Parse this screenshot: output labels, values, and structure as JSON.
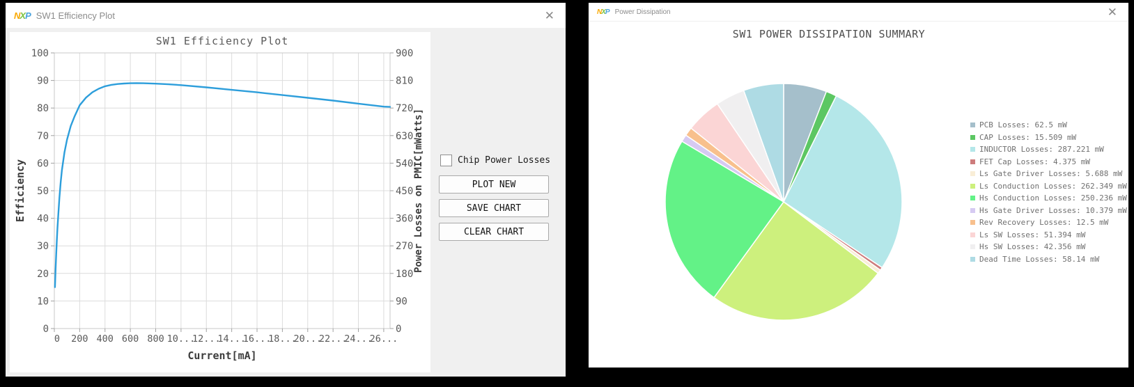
{
  "left_window": {
    "title": "SW1 Efficiency Plot",
    "logo_text": "NXP",
    "close_glyph": "✕",
    "controls": {
      "checkbox_label": "Chip Power Losses",
      "checkbox_checked": false,
      "buttons": [
        "PLOT NEW",
        "SAVE CHART",
        "CLEAR CHART"
      ]
    }
  },
  "right_window": {
    "title": "Power Dissipation",
    "logo_text": "NXP",
    "close_glyph": "✕"
  },
  "colors": {
    "nxp_orange": "#f9a800",
    "nxp_green": "#7cc242",
    "nxp_blue": "#4ba3dd",
    "efficiency_line": "#2d9edb",
    "grid": "#dcdcdc",
    "chart_text": "#595959"
  },
  "chart_data": [
    {
      "type": "line",
      "title": "SW1 Efficiency Plot",
      "xlabel": "Current[mA]",
      "ylabel_left": "Efficiency",
      "ylabel_right": "Power Losses on PMIC[mWatts]",
      "xlim": [
        0,
        2650
      ],
      "ylim_left": [
        0,
        100
      ],
      "ylim_right": [
        0,
        900
      ],
      "x_ticks": [
        0,
        200,
        400,
        600,
        800,
        1000,
        1200,
        1400,
        1600,
        1800,
        2000,
        2200,
        2400,
        2600
      ],
      "x_tick_labels": [
        "0",
        "200",
        "400",
        "600",
        "800",
        "10...",
        "12...",
        "14...",
        "16...",
        "18...",
        "20...",
        "22...",
        "24...",
        "26..."
      ],
      "y_ticks_left": [
        0,
        10,
        20,
        30,
        40,
        50,
        60,
        70,
        80,
        90,
        100
      ],
      "y_ticks_right": [
        0,
        90,
        180,
        270,
        360,
        450,
        540,
        630,
        720,
        810,
        900
      ],
      "grid": true,
      "line_color": "#2d9edb",
      "series": [
        {
          "name": "Efficiency",
          "x": [
            5,
            10,
            15,
            20,
            25,
            30,
            40,
            50,
            60,
            80,
            100,
            130,
            160,
            200,
            250,
            300,
            350,
            400,
            450,
            500,
            550,
            600,
            650,
            700,
            800,
            900,
            1000,
            1200,
            1400,
            1600,
            1800,
            2000,
            2200,
            2400,
            2600,
            2650
          ],
          "y": [
            15,
            21.5,
            27,
            32,
            36.5,
            40.5,
            47.5,
            53,
            57.5,
            64,
            68.5,
            73.5,
            77,
            81,
            83.8,
            85.7,
            87,
            87.9,
            88.4,
            88.7,
            88.9,
            89,
            89.05,
            89,
            88.85,
            88.6,
            88.3,
            87.5,
            86.6,
            85.7,
            84.7,
            83.7,
            82.7,
            81.6,
            80.5,
            80.4
          ]
        }
      ]
    },
    {
      "type": "pie",
      "title": "SW1 POWER DISSIPATION SUMMARY",
      "legend_position": "right",
      "start_angle_deg": 0,
      "direction": "clockwise",
      "slices": [
        {
          "label": "PCB Losses",
          "value_mw": 62.5,
          "legend_text": "PCB Losses: 62.5 mW",
          "color": "#a5bfcb"
        },
        {
          "label": "CAP Losses",
          "value_mw": 15.509,
          "legend_text": "CAP Losses: 15.509 mW",
          "color": "#5cc763"
        },
        {
          "label": "INDUCTOR Losses",
          "value_mw": 287.221,
          "legend_text": "INDUCTOR Losses: 287.221 mW",
          "color": "#b4e7e9"
        },
        {
          "label": "FET Cap Losses",
          "value_mw": 4.375,
          "legend_text": "FET Cap Losses: 4.375 mW",
          "color": "#cd7c7c"
        },
        {
          "label": "Ls Gate Driver Losses",
          "value_mw": 5.688,
          "legend_text": "Ls Gate Driver Losses: 5.688 mW",
          "color": "#f9eed7"
        },
        {
          "label": "Ls Conduction Losses",
          "value_mw": 262.349,
          "legend_text": "Ls Conduction Losses: 262.349 mW",
          "color": "#cdf07d"
        },
        {
          "label": "Hs Conduction Losses",
          "value_mw": 250.236,
          "legend_text": "Hs Conduction Losses: 250.236 mW",
          "color": "#63f287"
        },
        {
          "label": "Hs Gate Driver Losses",
          "value_mw": 10.379,
          "legend_text": "Hs Gate Driver Losses: 10.379 mW",
          "color": "#d6caf2"
        },
        {
          "label": "Rev Recovery Losses",
          "value_mw": 12.5,
          "legend_text": "Rev Recovery Losses: 12.5 mW",
          "color": "#f8c08d"
        },
        {
          "label": "Ls SW Losses",
          "value_mw": 51.394,
          "legend_text": "Ls SW Losses: 51.394 mW",
          "color": "#fbd5d5"
        },
        {
          "label": "Hs SW Losses",
          "value_mw": 42.356,
          "legend_text": "Hs SW Losses: 42.356 mW",
          "color": "#f0eff0"
        },
        {
          "label": "Dead Time Losses",
          "value_mw": 58.14,
          "legend_text": "Dead Time Losses: 58.14 mW",
          "color": "#aedbe4"
        }
      ]
    }
  ]
}
